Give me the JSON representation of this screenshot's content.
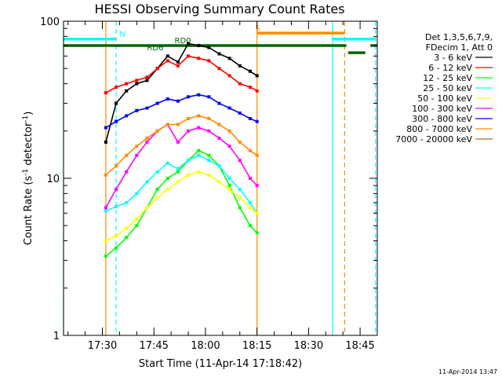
{
  "chart_data": {
    "type": "line",
    "title": "HESSI Observing Summary Count Rates",
    "xlabel": "Start Time (11-Apr-14 17:18:42)",
    "ylabel": "Count Rate (s",
    "ylabel_sup1": "-1",
    "ylabel_mid": " detector",
    "ylabel_sup2": "-1",
    "ylabel_end": ")",
    "yscale": "log",
    "ylim": [
      1,
      100
    ],
    "xlim": [
      "17:18:42",
      "18:50:00"
    ],
    "x_ticks": [
      "17:30",
      "17:45",
      "18:00",
      "18:15",
      "18:30",
      "18:45"
    ],
    "y_ticks": [
      "1",
      "10",
      "100"
    ],
    "legend_header": [
      "Det 1,3,5,6,7,9,",
      "FDecim 1, Att 0"
    ],
    "legend_placement": "right",
    "timestamp": "11-Apr-2014 13:47",
    "series": [
      {
        "name": "3 - 6 keV",
        "color": "#000000",
        "x": [
          "17:31",
          "17:34",
          "17:37",
          "17:40",
          "17:43",
          "17:46",
          "17:49",
          "17:52",
          "17:55",
          "17:58",
          "18:01",
          "18:04",
          "18:07",
          "18:10",
          "18:13",
          "18:15"
        ],
        "y": [
          17,
          30,
          36,
          40,
          42,
          50,
          60,
          55,
          72,
          70,
          68,
          62,
          58,
          52,
          48,
          45
        ]
      },
      {
        "name": "6 - 12 keV",
        "color": "#ff0000",
        "x": [
          "17:31",
          "17:34",
          "17:37",
          "17:40",
          "17:43",
          "17:46",
          "17:49",
          "17:52",
          "17:55",
          "17:58",
          "18:01",
          "18:04",
          "18:07",
          "18:10",
          "18:13",
          "18:15"
        ],
        "y": [
          35,
          38,
          40,
          42,
          44,
          50,
          56,
          52,
          60,
          58,
          56,
          50,
          45,
          40,
          38,
          36
        ]
      },
      {
        "name": "12 - 25 keV",
        "color": "#00ff00",
        "x": [
          "17:31",
          "17:34",
          "17:37",
          "17:40",
          "17:43",
          "17:46",
          "17:49",
          "17:52",
          "17:55",
          "17:58",
          "18:01",
          "18:04",
          "18:07",
          "18:10",
          "18:13",
          "18:15"
        ],
        "y": [
          3.2,
          3.6,
          4.2,
          5,
          6.5,
          8.5,
          10,
          11,
          13,
          15,
          14,
          12,
          9,
          6.5,
          5,
          4.5
        ]
      },
      {
        "name": "25 - 50 keV",
        "color": "#00ffff",
        "x": [
          "17:31",
          "17:34",
          "17:37",
          "17:40",
          "17:43",
          "17:46",
          "17:49",
          "17:52",
          "17:55",
          "17:58",
          "18:01",
          "18:04",
          "18:07",
          "18:10",
          "18:13",
          "18:15"
        ],
        "y": [
          6.2,
          6.6,
          7,
          8,
          9.5,
          11,
          12.5,
          11.5,
          13,
          14,
          13,
          12,
          10,
          8.5,
          7,
          6
        ]
      },
      {
        "name": "50 - 100 keV",
        "color": "#ffff00",
        "x": [
          "17:31",
          "17:34",
          "17:37",
          "17:40",
          "17:43",
          "17:46",
          "17:49",
          "17:52",
          "17:55",
          "17:58",
          "18:01",
          "18:04",
          "18:07",
          "18:10",
          "18:13",
          "18:15"
        ],
        "y": [
          4,
          4.3,
          4.8,
          5.5,
          6.5,
          7.5,
          8.5,
          9.5,
          10.5,
          11,
          10.5,
          9.5,
          8.5,
          7.5,
          6.5,
          6
        ]
      },
      {
        "name": "100 - 300 keV",
        "color": "#ff00ff",
        "x": [
          "17:31",
          "17:34",
          "17:37",
          "17:40",
          "17:43",
          "17:46",
          "17:49",
          "17:52",
          "17:55",
          "17:58",
          "18:01",
          "18:04",
          "18:07",
          "18:10",
          "18:13",
          "18:15"
        ],
        "y": [
          6.5,
          8.5,
          11,
          14,
          17,
          20,
          22,
          17,
          20,
          21,
          20,
          18,
          16,
          13,
          10,
          9
        ]
      },
      {
        "name": "300 - 800 keV",
        "color": "#0000ff",
        "x": [
          "17:31",
          "17:34",
          "17:37",
          "17:40",
          "17:43",
          "17:46",
          "17:49",
          "17:52",
          "17:55",
          "17:58",
          "18:01",
          "18:04",
          "18:07",
          "18:10",
          "18:13",
          "18:15"
        ],
        "y": [
          21,
          23,
          25,
          27,
          28,
          30,
          32,
          31,
          33,
          34,
          33,
          30,
          28,
          26,
          24,
          23
        ]
      },
      {
        "name": "800 - 7000 keV",
        "color": "#ff8c00",
        "x": [
          "17:31",
          "17:34",
          "17:37",
          "17:40",
          "17:43",
          "17:46",
          "17:49",
          "17:52",
          "17:55",
          "17:58",
          "18:01",
          "18:04",
          "18:07",
          "18:10",
          "18:13",
          "18:15"
        ],
        "y": [
          10.5,
          12,
          14,
          16,
          18,
          20,
          22,
          22,
          24,
          25,
          24,
          22,
          20,
          17,
          15,
          14
        ]
      },
      {
        "name": "7000 - 20000 keV",
        "color": "#a0781e",
        "x": [],
        "y": []
      }
    ],
    "flag_bars": [
      {
        "label": "",
        "color": "#00ffff",
        "level": 77,
        "segments": [
          [
            "17:18:42",
            "17:34:00"
          ],
          [
            "18:37:00",
            "18:49:30"
          ]
        ]
      },
      {
        "label": "N",
        "color": "#00ffff",
        "level": 77,
        "label_at": "17:35"
      },
      {
        "label": "",
        "color": "#ff8c00",
        "level": 84,
        "segments": [
          [
            "18:15:00",
            "18:40:30"
          ]
        ]
      },
      {
        "label": "S",
        "color": "#ff8c00",
        "level": 84,
        "label_at": "18:14:30"
      },
      {
        "label": "",
        "color": "#006400",
        "level": 70,
        "segments": [
          [
            "17:18:42",
            "18:41:00"
          ],
          [
            "18:48:00",
            "18:50:00"
          ]
        ]
      },
      {
        "label": "RD0",
        "color": "#006400",
        "level": 70,
        "label_at": "17:51"
      },
      {
        "label": "",
        "color": "#006400",
        "level": 63,
        "segments": [
          [
            "18:41:30",
            "18:46:30"
          ]
        ]
      },
      {
        "label": "RD6",
        "color": "#006400",
        "level": 63,
        "label_at": "17:43"
      }
    ],
    "vlines": [
      {
        "x": "17:18:42",
        "color": "#00ffff",
        "style": "solid"
      },
      {
        "x": "17:34:00",
        "color": "#00ffff",
        "style": "dashed"
      },
      {
        "x": "17:31:00",
        "color": "#ff8c00",
        "style": "solid"
      },
      {
        "x": "18:15:00",
        "color": "#ff8c00",
        "style": "solid"
      },
      {
        "x": "18:37:00",
        "color": "#00ffff",
        "style": "solid"
      },
      {
        "x": "18:40:30",
        "color": "#ff8c00",
        "style": "dashed"
      },
      {
        "x": "18:49:30",
        "color": "#00ffff",
        "style": "dashed"
      }
    ]
  }
}
